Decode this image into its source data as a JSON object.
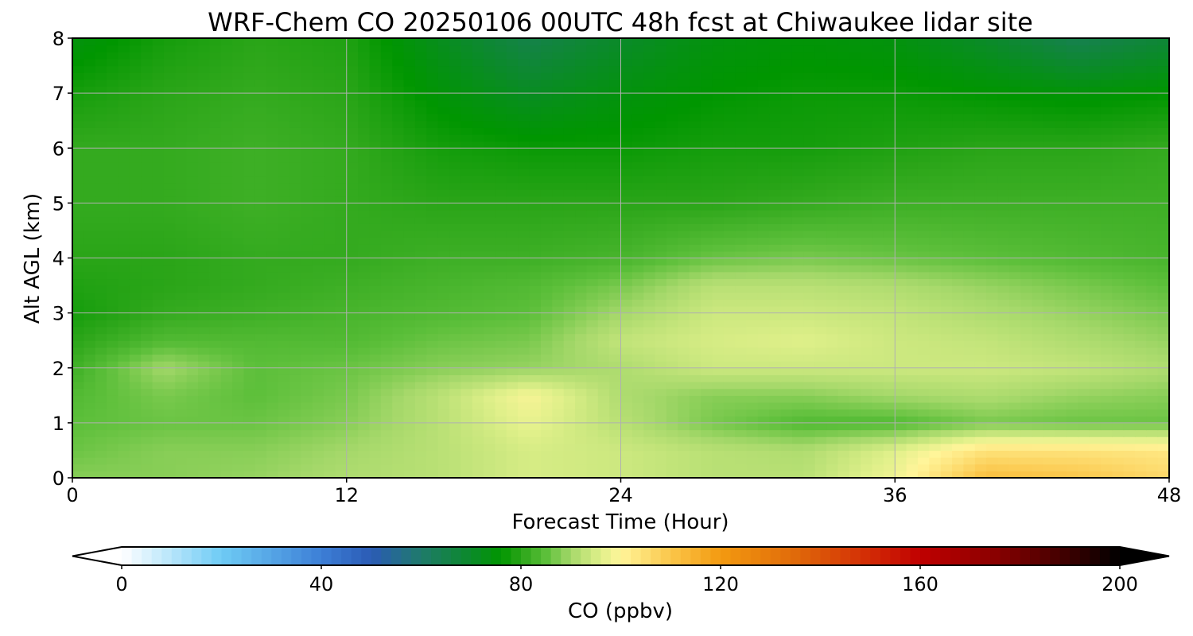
{
  "chart_data": {
    "type": "heatmap",
    "title": "WRF-Chem CO  20250106 00UTC 48h fcst at Chiwaukee lidar site",
    "xlabel": "Forecast Time (Hour)",
    "ylabel": "Alt AGL (km)",
    "xlim": [
      0,
      48
    ],
    "ylim": [
      0,
      8
    ],
    "x_ticks": [
      "0",
      "12",
      "24",
      "36",
      "48"
    ],
    "y_ticks": [
      "0",
      "1",
      "2",
      "3",
      "4",
      "5",
      "6",
      "7",
      "8"
    ],
    "grid": true,
    "colorbar": {
      "label": "CO  (ppbv)",
      "range": [
        0,
        200
      ],
      "ticks": [
        "0",
        "40",
        "80",
        "120",
        "160",
        "200"
      ],
      "extend": "both",
      "orientation": "horizontal",
      "colors": [
        {
          "v": 0,
          "c": "#ffffff"
        },
        {
          "v": 20,
          "c": "#6ecbf5"
        },
        {
          "v": 40,
          "c": "#3d7fd6"
        },
        {
          "v": 50,
          "c": "#2b5bb5"
        },
        {
          "v": 60,
          "c": "#1f7a6a"
        },
        {
          "v": 70,
          "c": "#0b8a2a"
        },
        {
          "v": 76,
          "c": "#009600"
        },
        {
          "v": 80,
          "c": "#2aa518"
        },
        {
          "v": 85,
          "c": "#5cbf3a"
        },
        {
          "v": 90,
          "c": "#a5d86a"
        },
        {
          "v": 96,
          "c": "#e0f08a"
        },
        {
          "v": 100,
          "c": "#fff59a"
        },
        {
          "v": 110,
          "c": "#fbc64a"
        },
        {
          "v": 120,
          "c": "#f39a10"
        },
        {
          "v": 135,
          "c": "#e06a0a"
        },
        {
          "v": 150,
          "c": "#d22a05"
        },
        {
          "v": 160,
          "c": "#c00000"
        },
        {
          "v": 175,
          "c": "#8a0000"
        },
        {
          "v": 190,
          "c": "#3a0000"
        },
        {
          "v": 200,
          "c": "#000000"
        }
      ]
    },
    "x_hours": [
      0,
      4,
      8,
      12,
      16,
      20,
      24,
      28,
      32,
      36,
      40,
      44,
      48
    ],
    "y_km": [
      0,
      0.5,
      1,
      1.5,
      2,
      2.5,
      3,
      3.5,
      4,
      5,
      6,
      7,
      8
    ],
    "values_ppbv": [
      [
        88,
        88,
        89,
        91,
        92,
        95,
        94,
        92,
        92,
        98,
        112,
        110,
        106
      ],
      [
        86,
        88,
        88,
        90,
        92,
        95,
        94,
        92,
        91,
        96,
        104,
        104,
        103
      ],
      [
        85,
        86,
        86,
        88,
        92,
        97,
        92,
        87,
        84,
        84,
        87,
        86,
        86
      ],
      [
        84,
        87,
        85,
        87,
        92,
        99,
        91,
        88,
        88,
        90,
        91,
        89,
        88
      ],
      [
        82,
        90,
        85,
        86,
        88,
        89,
        91,
        94,
        94,
        94,
        94,
        93,
        91
      ],
      [
        80,
        84,
        84,
        84,
        86,
        87,
        93,
        95,
        96,
        94,
        93,
        91,
        89
      ],
      [
        78,
        81,
        82,
        83,
        84,
        85,
        90,
        94,
        94,
        93,
        91,
        89,
        87
      ],
      [
        79,
        80,
        81,
        82,
        83,
        84,
        87,
        92,
        92,
        91,
        89,
        87,
        85
      ],
      [
        80,
        80,
        81,
        81,
        82,
        82,
        83,
        86,
        87,
        86,
        85,
        84,
        83
      ],
      [
        81,
        81,
        82,
        81,
        80,
        80,
        80,
        80,
        81,
        82,
        82,
        82,
        82
      ],
      [
        81,
        81,
        82,
        81,
        78,
        77,
        77,
        78,
        78,
        79,
        80,
        80,
        81
      ],
      [
        78,
        80,
        81,
        80,
        75,
        71,
        74,
        76,
        77,
        77,
        76,
        75,
        76
      ],
      [
        74,
        78,
        80,
        79,
        72,
        65,
        70,
        74,
        75,
        74,
        70,
        64,
        68
      ]
    ]
  }
}
